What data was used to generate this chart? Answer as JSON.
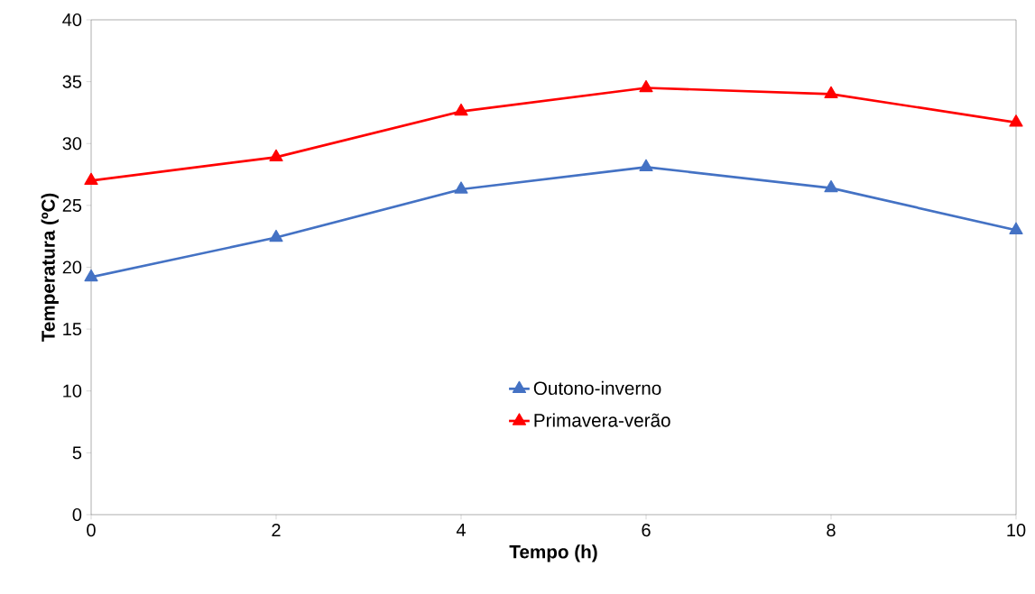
{
  "chart_data": {
    "type": "line",
    "xlabel": "Tempo (h)",
    "ylabel": "Temperatura (ºC)",
    "x": [
      0,
      2,
      4,
      6,
      8,
      10
    ],
    "series": [
      {
        "name": "Outono-inverno",
        "color": "#4472c4",
        "values": [
          19.2,
          22.4,
          26.3,
          28.1,
          26.4,
          23.0
        ]
      },
      {
        "name": "Primavera-verão",
        "color": "#ff0000",
        "values": [
          27.0,
          28.9,
          32.6,
          34.5,
          34.0,
          31.7
        ]
      }
    ],
    "xlim": [
      0,
      10
    ],
    "xticks": [
      0,
      2,
      4,
      6,
      8,
      10
    ],
    "ylim": [
      0,
      40
    ],
    "yticks": [
      0,
      5,
      10,
      15,
      20,
      25,
      30,
      35,
      40
    ],
    "grid": false,
    "legend": "bottom",
    "marker": "triangle",
    "line_style": "solid"
  }
}
